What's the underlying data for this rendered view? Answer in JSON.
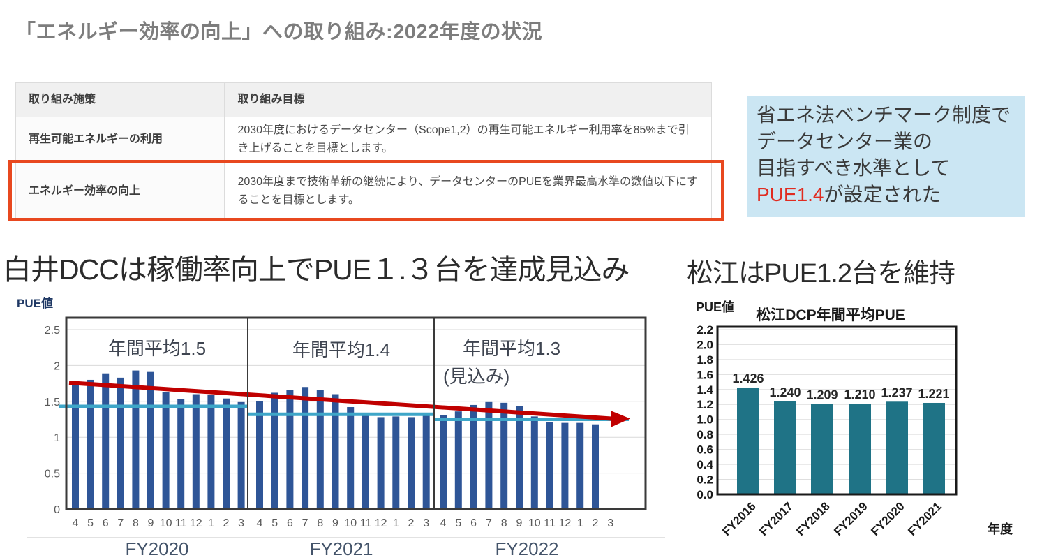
{
  "page": {
    "title": "「エネルギー効率の向上」への取り組み:2022年度の状況"
  },
  "table": {
    "headers": [
      "取り組み施策",
      "取り組み目標"
    ],
    "rows": [
      {
        "policy": "再生可能エネルギーの利用",
        "goal": "2030年度におけるデータセンター（Scope1,2）の再生可能エネルギー利用率を85%まで引き上げることを目標とします。"
      },
      {
        "policy": "エネルギー効率の向上",
        "goal": "2030年度まで技術革新の継続により、データセンターのPUEを業界最高水準の数値以下にすることを目標とします。"
      }
    ],
    "highlighted_row": 1
  },
  "callout": {
    "lines": [
      "省エネ法ベンチマーク制度で",
      "データセンター業の",
      "目指すべき水準として"
    ],
    "highlight": "PUE1.4",
    "line4_rest": "が設定された"
  },
  "shirai": {
    "heading": "白井DCCは稼働率向上でPUE１.３台を達成見込み"
  },
  "matsue": {
    "heading": "松江はPUE1.2台を維持"
  },
  "chart_data": [
    {
      "id": "shirai",
      "type": "bar",
      "ylabel": "PUE値",
      "yticks": [
        0,
        0.5,
        1,
        1.5,
        2,
        2.5
      ],
      "ytick_labels": [
        "0",
        "0.5",
        "1",
        "1.5",
        "2",
        "2.5"
      ],
      "months": [
        "4",
        "5",
        "6",
        "7",
        "8",
        "9",
        "10",
        "11",
        "12",
        "1",
        "2",
        "3"
      ],
      "groups": [
        {
          "label": "FY2020",
          "annotation": "年間平均1.5",
          "average_line": 1.43,
          "values": [
            1.73,
            1.8,
            1.89,
            1.83,
            1.93,
            1.91,
            1.63,
            1.53,
            1.6,
            1.59,
            1.54,
            1.49
          ]
        },
        {
          "label": "FY2021",
          "annotation": "年間平均1.4",
          "average_line": 1.32,
          "values": [
            1.5,
            1.62,
            1.66,
            1.7,
            1.66,
            1.6,
            1.42,
            1.3,
            1.28,
            1.29,
            1.28,
            1.3
          ]
        },
        {
          "label": "FY2022",
          "annotation": "年間平均1.3",
          "annotation2": "(見込み)",
          "average_line": 1.25,
          "values": [
            1.31,
            1.36,
            1.45,
            1.49,
            1.48,
            1.43,
            1.29,
            1.21,
            1.2,
            1.2,
            1.18,
            null
          ]
        }
      ],
      "trend_arrow": {
        "start_value": 1.76,
        "end_value": 1.26
      },
      "ylim": [
        0,
        2.5
      ]
    },
    {
      "id": "matsue",
      "type": "bar",
      "title": "松江DCP年間平均PUE",
      "ylabel": "PUE値",
      "xlabel": "年度",
      "categories": [
        "FY2016",
        "FY2017",
        "FY2018",
        "FY2019",
        "FY2020",
        "FY2021"
      ],
      "values": [
        1.426,
        1.24,
        1.209,
        1.21,
        1.237,
        1.221
      ],
      "value_labels": [
        "1.426",
        "1.240",
        "1.209",
        "1.210",
        "1.237",
        "1.221"
      ],
      "ytick_labels": [
        "0.0",
        "0.2",
        "0.4",
        "0.6",
        "0.8",
        "1.0",
        "1.2",
        "1.4",
        "1.6",
        "1.8",
        "2.0",
        "2.2"
      ],
      "ylim": [
        0,
        2.2
      ]
    }
  ],
  "colors": {
    "title_gray": "#7d7d7d",
    "highlight_border": "#e8481f",
    "callout_bg": "#cbe6f3",
    "callout_red": "#e02b20",
    "shirai_bar": "#2e5597",
    "trend_red": "#c00000",
    "average_teal": "#3ea6c8",
    "matsue_bar": "#1f7386"
  }
}
